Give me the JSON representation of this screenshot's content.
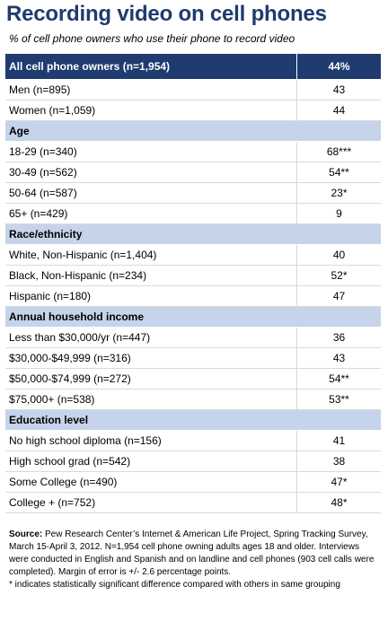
{
  "header": {
    "title": "Recording video on cell phones",
    "subtitle": "% of cell phone owners who use their phone to record video"
  },
  "chart_data": {
    "type": "table",
    "title": "Recording video on cell phones",
    "subtitle": "% of cell phone owners who use their phone to record video",
    "total": {
      "label": "All cell phone owners (n=1,954)",
      "value": "44%"
    },
    "groups": [
      {
        "name": "",
        "rows": [
          {
            "label": "Men (n=895)",
            "value": "43"
          },
          {
            "label": "Women (n=1,059)",
            "value": "44"
          }
        ]
      },
      {
        "name": "Age",
        "rows": [
          {
            "label": "18-29 (n=340)",
            "value": "68***"
          },
          {
            "label": "30-49 (n=562)",
            "value": "54**"
          },
          {
            "label": "50-64 (n=587)",
            "value": "23*"
          },
          {
            "label": "65+ (n=429)",
            "value": "9"
          }
        ]
      },
      {
        "name": "Race/ethnicity",
        "rows": [
          {
            "label": "White, Non-Hispanic (n=1,404)",
            "value": "40"
          },
          {
            "label": "Black, Non-Hispanic (n=234)",
            "value": "52*"
          },
          {
            "label": "Hispanic (n=180)",
            "value": "47"
          }
        ]
      },
      {
        "name": "Annual household income",
        "rows": [
          {
            "label": "Less than $30,000/yr (n=447)",
            "value": "36"
          },
          {
            "label": "$30,000-$49,999 (n=316)",
            "value": "43"
          },
          {
            "label": "$50,000-$74,999 (n=272)",
            "value": "54**"
          },
          {
            "label": "$75,000+ (n=538)",
            "value": "53**"
          }
        ]
      },
      {
        "name": "Education level",
        "rows": [
          {
            "label": "No high school diploma (n=156)",
            "value": "41"
          },
          {
            "label": "High school grad (n=542)",
            "value": "38"
          },
          {
            "label": "Some College (n=490)",
            "value": "47*"
          },
          {
            "label": "College + (n=752)",
            "value": "48*"
          }
        ]
      }
    ]
  },
  "footer": {
    "source_label": "Source:",
    "source_text": "Pew Research Center’s Internet & American Life Project, Spring Tracking Survey, March 15-April 3, 2012. N=1,954 cell phone owning adults ages 18 and older. Interviews were conducted in English and Spanish and on landline and cell phones (903 cell calls were completed). Margin of error is +/- 2.6 percentage points.",
    "footnote": "* indicates statistically significant difference compared with others in same grouping"
  },
  "colors": {
    "title": "#1f3b70",
    "total_row_bg": "#1f3b70",
    "section_row_bg": "#c5d4ea",
    "row_divider": "#d9d9d9"
  }
}
